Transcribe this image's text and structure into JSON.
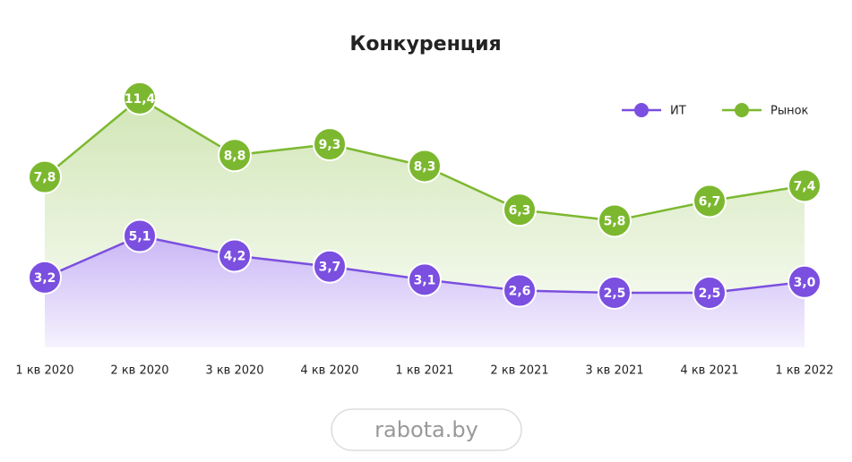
{
  "chart_data": {
    "type": "line",
    "title": "Конкуренция",
    "categories": [
      "1 кв 2020",
      "2 кв 2020",
      "3 кв 2020",
      "4 кв 2020",
      "1 кв 2021",
      "2 кв 2021",
      "3 кв 2021",
      "4 кв 2021",
      "1 кв 2022"
    ],
    "series": [
      {
        "name": "ИТ",
        "color": "#7b4fe0",
        "values": [
          3.2,
          5.1,
          4.2,
          3.7,
          3.1,
          2.6,
          2.5,
          2.5,
          3.0
        ],
        "value_labels": [
          "3,2",
          "5,1",
          "4,2",
          "3,7",
          "3,1",
          "2,6",
          "2,5",
          "2,5",
          "3,0"
        ]
      },
      {
        "name": "Рынок",
        "color": "#7cb82f",
        "values": [
          7.8,
          11.4,
          8.8,
          9.3,
          8.3,
          6.3,
          5.8,
          6.7,
          7.4
        ],
        "value_labels": [
          "7,8",
          "11,4",
          "8,8",
          "9,3",
          "8,3",
          "6,3",
          "5,8",
          "6,7",
          "7,4"
        ]
      }
    ],
    "ylim": [
      0,
      12
    ],
    "legend": "top-right",
    "area": true,
    "watermark": "rabota.by"
  }
}
